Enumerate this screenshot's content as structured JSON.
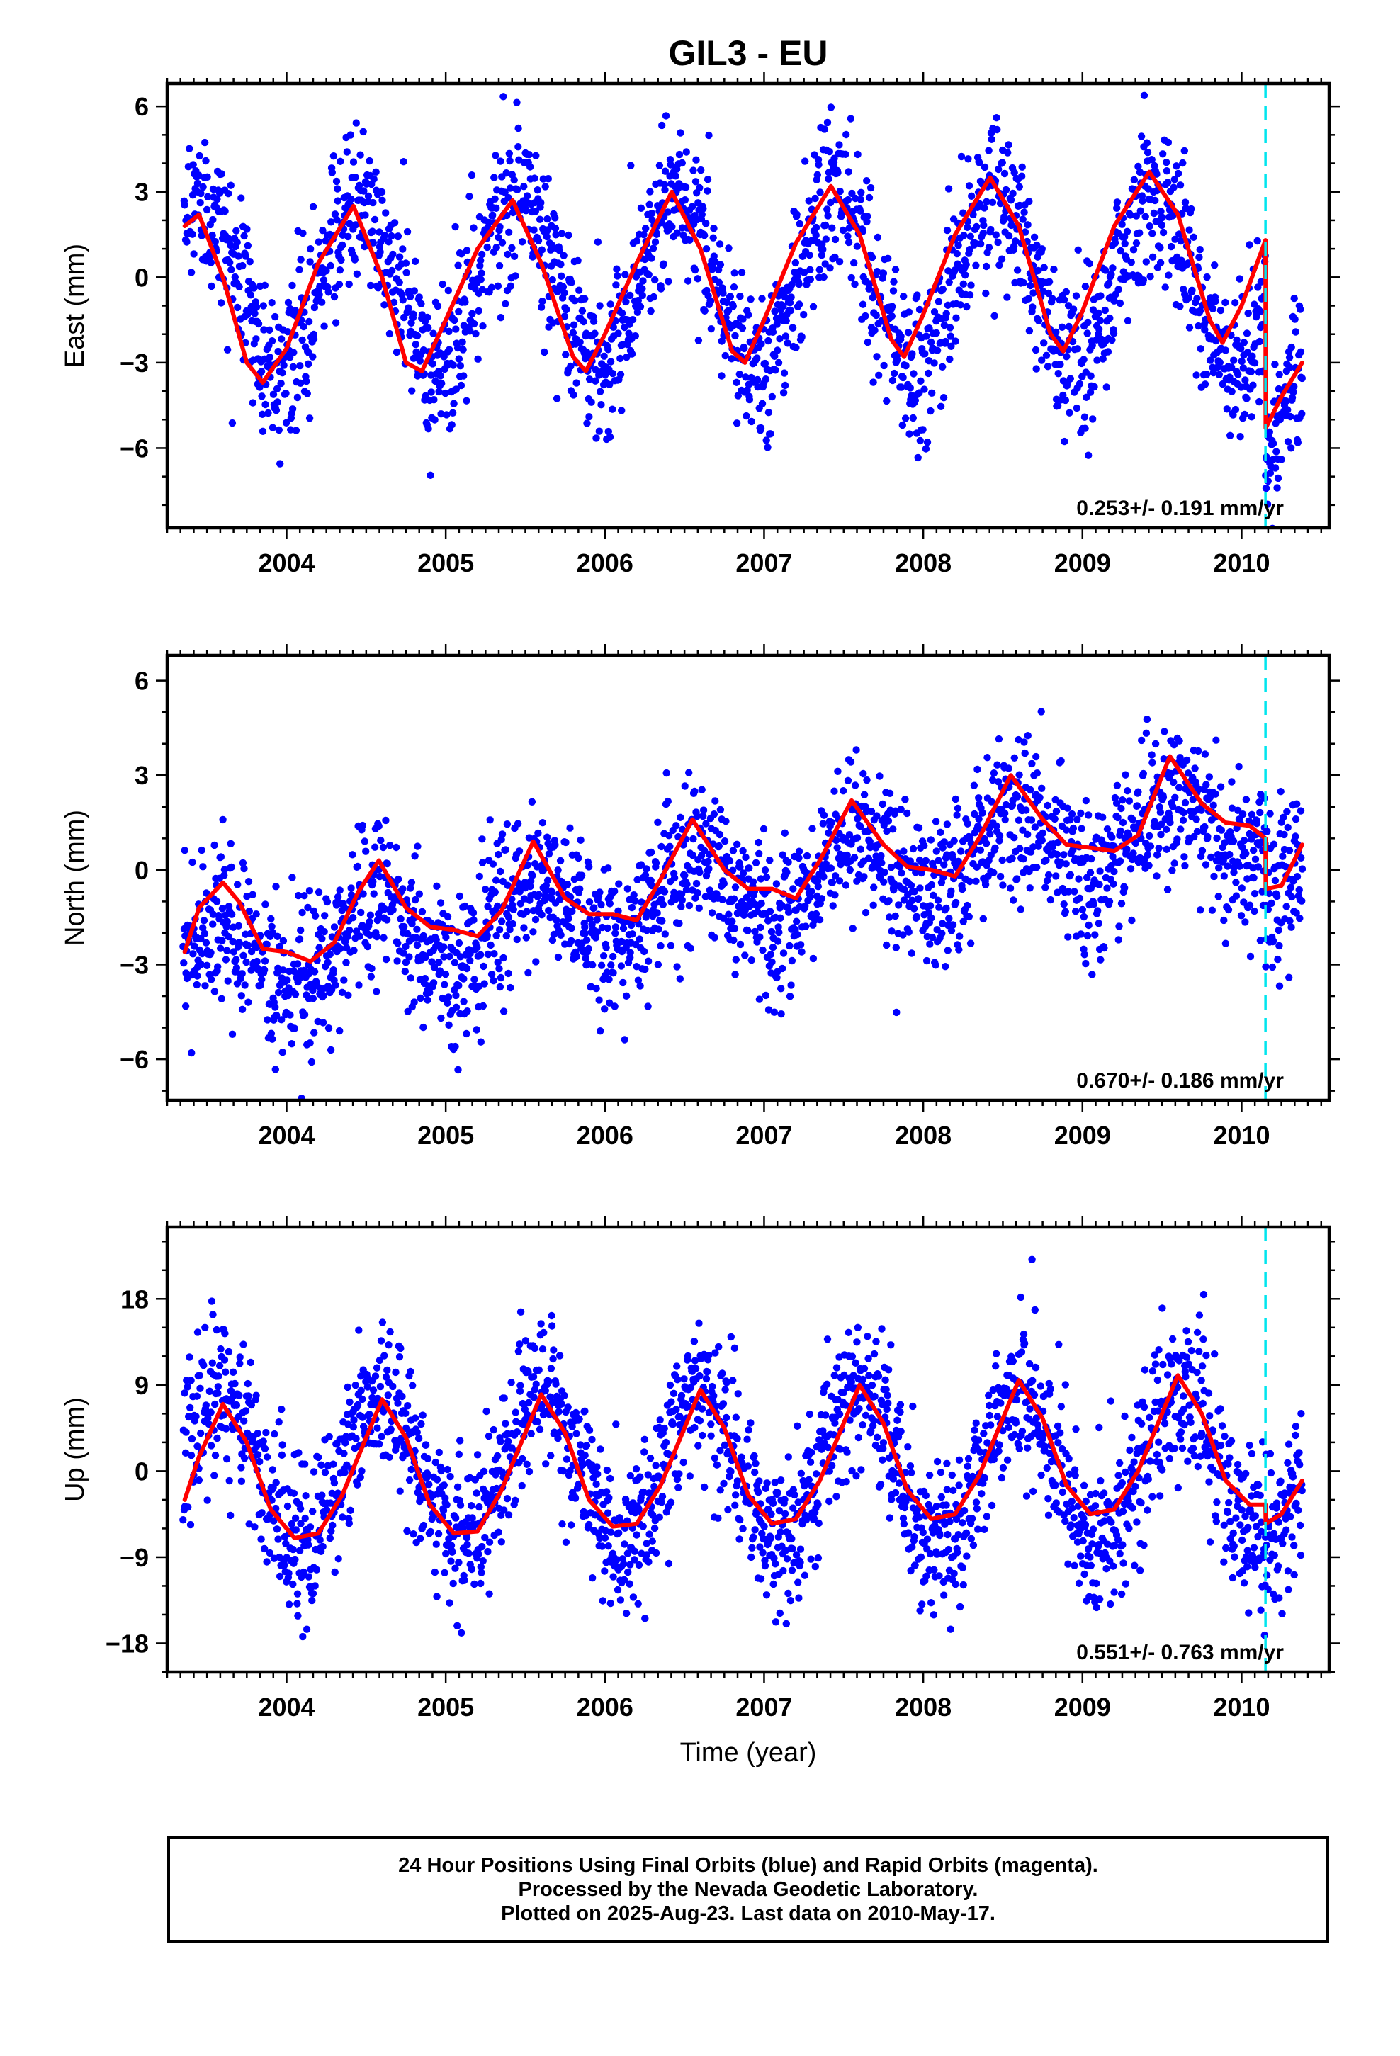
{
  "title": "GIL3 - EU",
  "footer": {
    "line1": "24 Hour Positions Using Final Orbits (blue) and Rapid Orbits (magenta).",
    "line2": "Processed by the Nevada Geodetic Laboratory.",
    "line3": "Plotted on 2025-Aug-23. Last data on 2010-May-17."
  },
  "colors": {
    "points": "#0000ff",
    "fit": "#ff0000",
    "event_line": "#00e5ee",
    "frame": "#000000"
  },
  "chart_data": [
    {
      "type": "scatter",
      "component": "East",
      "ylabel": "East (mm)",
      "xlabel": "",
      "xlim": [
        2003.25,
        2010.55
      ],
      "ylim": [
        -8.8,
        6.8
      ],
      "yticks": [
        "6",
        "3",
        "0",
        "-3",
        "-6"
      ],
      "xticks": [
        "2004",
        "2005",
        "2006",
        "2007",
        "2008",
        "2009",
        "2010"
      ],
      "rate_text": "0.253+/- 0.191 mm/yr",
      "event_line_x": 2010.15,
      "series": [
        {
          "role": "daily positions",
          "x_range": [
            2003.35,
            2010.38
          ],
          "approx_model": {
            "offset": -0.2,
            "amplitude": 2.9,
            "peak_phase": 0.45,
            "scatter": 1.4,
            "step_at": 2010.15,
            "step": -5.5
          }
        },
        {
          "role": "model fit",
          "x": [
            2003.36,
            2003.45,
            2003.6,
            2003.75,
            2003.85,
            2004.0,
            2004.2,
            2004.42,
            2004.6,
            2004.75,
            2004.85,
            2005.0,
            2005.2,
            2005.42,
            2005.6,
            2005.8,
            2005.88,
            2006.0,
            2006.2,
            2006.42,
            2006.6,
            2006.8,
            2006.88,
            2007.0,
            2007.2,
            2007.42,
            2007.6,
            2007.8,
            2007.88,
            2008.0,
            2008.2,
            2008.42,
            2008.6,
            2008.8,
            2008.88,
            2009.0,
            2009.2,
            2009.42,
            2009.6,
            2009.8,
            2009.88,
            2010.0,
            2010.15,
            2010.151,
            2010.25,
            2010.38
          ],
          "y": [
            1.8,
            2.2,
            0.0,
            -3.0,
            -3.7,
            -2.5,
            0.5,
            2.5,
            0.0,
            -3.0,
            -3.3,
            -1.5,
            1.0,
            2.7,
            0.5,
            -2.8,
            -3.3,
            -2.0,
            0.5,
            3.0,
            1.0,
            -2.6,
            -3.0,
            -1.5,
            1.2,
            3.2,
            1.5,
            -2.2,
            -2.8,
            -1.3,
            1.5,
            3.5,
            1.8,
            -2.0,
            -2.6,
            -1.2,
            1.8,
            3.7,
            2.2,
            -1.5,
            -2.3,
            -1.0,
            1.3,
            -5.3,
            -4.2,
            -3.0
          ]
        }
      ]
    },
    {
      "type": "scatter",
      "component": "North",
      "ylabel": "North (mm)",
      "xlabel": "",
      "xlim": [
        2003.25,
        2010.55
      ],
      "ylim": [
        -7.3,
        6.8
      ],
      "yticks": [
        "6",
        "3",
        "0",
        "-3",
        "-6"
      ],
      "xticks": [
        "2004",
        "2005",
        "2006",
        "2007",
        "2008",
        "2009",
        "2010"
      ],
      "rate_text": "0.670+/- 0.186 mm/yr",
      "event_line_x": 2010.15,
      "series": [
        {
          "role": "daily positions",
          "x_range": [
            2003.35,
            2010.38
          ],
          "approx_model": {
            "offset": -0.5,
            "trend": 0.67,
            "amplitude": 1.2,
            "peak_phase": 0.55,
            "scatter": 1.2,
            "step_at": 2010.15,
            "step": -1.9
          }
        },
        {
          "role": "model fit",
          "x": [
            2003.36,
            2003.45,
            2003.6,
            2003.7,
            2003.85,
            2004.0,
            2004.15,
            2004.3,
            2004.45,
            2004.58,
            2004.75,
            2004.9,
            2005.05,
            2005.2,
            2005.35,
            2005.55,
            2005.75,
            2005.9,
            2006.05,
            2006.2,
            2006.35,
            2006.55,
            2006.75,
            2006.9,
            2007.05,
            2007.2,
            2007.35,
            2007.55,
            2007.75,
            2007.9,
            2008.05,
            2008.2,
            2008.35,
            2008.55,
            2008.75,
            2008.9,
            2009.05,
            2009.2,
            2009.35,
            2009.55,
            2009.75,
            2009.9,
            2010.05,
            2010.15,
            2010.151,
            2010.25,
            2010.38
          ],
          "y": [
            -2.6,
            -1.2,
            -0.4,
            -1.0,
            -2.5,
            -2.6,
            -2.9,
            -2.3,
            -0.7,
            0.3,
            -1.2,
            -1.8,
            -1.9,
            -2.1,
            -1.3,
            0.9,
            -0.9,
            -1.4,
            -1.4,
            -1.6,
            -0.3,
            1.6,
            0.0,
            -0.6,
            -0.6,
            -0.9,
            0.3,
            2.2,
            0.8,
            0.1,
            0.0,
            -0.2,
            1.0,
            3.0,
            1.6,
            0.8,
            0.7,
            0.6,
            1.1,
            3.6,
            2.1,
            1.5,
            1.4,
            1.0,
            -0.6,
            -0.5,
            0.8
          ]
        }
      ]
    },
    {
      "type": "scatter",
      "component": "Up",
      "ylabel": "Up (mm)",
      "xlabel": "Time (year)",
      "xlim": [
        2003.25,
        2010.55
      ],
      "ylim": [
        -21.0,
        25.5
      ],
      "yticks": [
        "18",
        "9",
        "0",
        "-9",
        "-18"
      ],
      "xticks": [
        "2004",
        "2005",
        "2006",
        "2007",
        "2008",
        "2009",
        "2010"
      ],
      "rate_text": "0.551+/- 0.763 mm/yr",
      "event_line_x": 2010.15,
      "series": [
        {
          "role": "daily positions",
          "x_range": [
            2003.35,
            2010.38
          ],
          "approx_model": {
            "offset": 0.5,
            "amplitude": 7.5,
            "peak_phase": 0.6,
            "scatter": 4.0,
            "step_at": 2010.15,
            "step": -2.0
          }
        },
        {
          "role": "model fit",
          "x": [
            2003.36,
            2003.45,
            2003.6,
            2003.75,
            2003.9,
            2004.05,
            2004.2,
            2004.35,
            2004.6,
            2004.75,
            2004.9,
            2005.05,
            2005.2,
            2005.35,
            2005.6,
            2005.75,
            2005.9,
            2006.05,
            2006.2,
            2006.35,
            2006.6,
            2006.75,
            2006.9,
            2007.05,
            2007.2,
            2007.35,
            2007.6,
            2007.75,
            2007.9,
            2008.05,
            2008.2,
            2008.35,
            2008.6,
            2008.75,
            2008.9,
            2009.05,
            2009.2,
            2009.35,
            2009.6,
            2009.75,
            2009.9,
            2010.05,
            2010.15,
            2010.151,
            2010.25,
            2010.38
          ],
          "y": [
            -3.0,
            1.5,
            7.0,
            3.0,
            -4.0,
            -7.0,
            -6.5,
            -2.5,
            7.5,
            3.5,
            -3.5,
            -6.5,
            -6.3,
            -2.0,
            8.0,
            4.0,
            -3.0,
            -5.8,
            -5.5,
            -1.5,
            8.5,
            4.5,
            -2.5,
            -5.5,
            -5.0,
            -1.0,
            9.0,
            5.0,
            -2.0,
            -5.0,
            -4.5,
            -0.5,
            9.5,
            5.5,
            -1.5,
            -4.5,
            -4.0,
            0.0,
            10.0,
            6.0,
            -1.0,
            -3.5,
            -3.5,
            -5.5,
            -4.5,
            -1.0
          ]
        }
      ]
    }
  ]
}
